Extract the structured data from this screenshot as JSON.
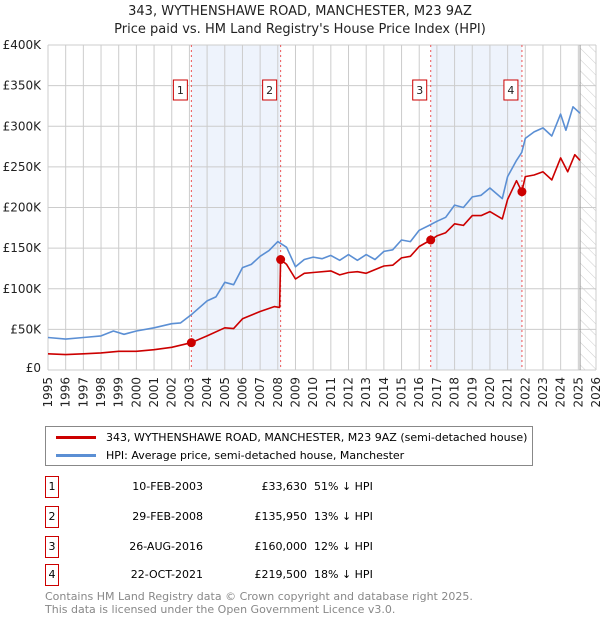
{
  "chart_data": {
    "type": "line",
    "title": "343, WYTHENSHAWE ROAD, MANCHESTER, M23 9AZ",
    "subtitle": "Price paid vs. HM Land Registry's House Price Index (HPI)",
    "xlim": [
      1995,
      2026
    ],
    "ylim": [
      0,
      400000
    ],
    "yticks": [
      {
        "v": 0,
        "label": "£0"
      },
      {
        "v": 50000,
        "label": "£50K"
      },
      {
        "v": 100000,
        "label": "£100K"
      },
      {
        "v": 150000,
        "label": "£150K"
      },
      {
        "v": 200000,
        "label": "£200K"
      },
      {
        "v": 250000,
        "label": "£250K"
      },
      {
        "v": 300000,
        "label": "£300K"
      },
      {
        "v": 350000,
        "label": "£350K"
      },
      {
        "v": 400000,
        "label": "£400K"
      }
    ],
    "xticks": [
      "1995",
      "1996",
      "1997",
      "1998",
      "1999",
      "2000",
      "2001",
      "2002",
      "2003",
      "2004",
      "2005",
      "2006",
      "2007",
      "2008",
      "2009",
      "2010",
      "2011",
      "2012",
      "2013",
      "2014",
      "2015",
      "2016",
      "2017",
      "2018",
      "2019",
      "2020",
      "2021",
      "2022",
      "2023",
      "2024",
      "2025",
      "2026"
    ],
    "forecast_from": 2025.1,
    "series": [
      {
        "name": "343, WYTHENSHAWE ROAD, MANCHESTER, M23 9AZ (semi-detached house)",
        "color": "#cc0000",
        "points": [
          [
            1995,
            20000
          ],
          [
            1996,
            19000
          ],
          [
            1997,
            20000
          ],
          [
            1998,
            21000
          ],
          [
            1999,
            23000
          ],
          [
            2000,
            23000
          ],
          [
            2001,
            25000
          ],
          [
            2002,
            28000
          ],
          [
            2003.1,
            33630
          ],
          [
            2004,
            42000
          ],
          [
            2005,
            52000
          ],
          [
            2005.5,
            51000
          ],
          [
            2006,
            63000
          ],
          [
            2007,
            72000
          ],
          [
            2007.8,
            78000
          ],
          [
            2008.1,
            77000
          ],
          [
            2008.16,
            135950
          ],
          [
            2008.5,
            130000
          ],
          [
            2009,
            112000
          ],
          [
            2009.5,
            119000
          ],
          [
            2010,
            120000
          ],
          [
            2011,
            122000
          ],
          [
            2011.5,
            117000
          ],
          [
            2012,
            120000
          ],
          [
            2012.5,
            121000
          ],
          [
            2013,
            119000
          ],
          [
            2014,
            128000
          ],
          [
            2014.5,
            129000
          ],
          [
            2015,
            138000
          ],
          [
            2015.5,
            140000
          ],
          [
            2016,
            152000
          ],
          [
            2016.65,
            160000
          ],
          [
            2017,
            165000
          ],
          [
            2017.5,
            169000
          ],
          [
            2018,
            180000
          ],
          [
            2018.5,
            178000
          ],
          [
            2019,
            190000
          ],
          [
            2019.5,
            190000
          ],
          [
            2020,
            195000
          ],
          [
            2020.7,
            186000
          ],
          [
            2021,
            210000
          ],
          [
            2021.5,
            233000
          ],
          [
            2021.8,
            219500
          ],
          [
            2022,
            238000
          ],
          [
            2022.5,
            240000
          ],
          [
            2023,
            244000
          ],
          [
            2023.5,
            234000
          ],
          [
            2024,
            261000
          ],
          [
            2024.4,
            244000
          ],
          [
            2024.8,
            265000
          ],
          [
            2025.1,
            258000
          ]
        ]
      },
      {
        "name": "HPI: Average price, semi-detached house, Manchester",
        "color": "#5b8fd4",
        "points": [
          [
            1995,
            40000
          ],
          [
            1996,
            38000
          ],
          [
            1997,
            40000
          ],
          [
            1998,
            42000
          ],
          [
            1998.7,
            48000
          ],
          [
            1999.3,
            44000
          ],
          [
            2000,
            48000
          ],
          [
            2001,
            52000
          ],
          [
            2002,
            57000
          ],
          [
            2002.5,
            58000
          ],
          [
            2003.1,
            68000
          ],
          [
            2004,
            85000
          ],
          [
            2004.5,
            90000
          ],
          [
            2005,
            108000
          ],
          [
            2005.5,
            105000
          ],
          [
            2006,
            126000
          ],
          [
            2006.5,
            130000
          ],
          [
            2007,
            140000
          ],
          [
            2007.5,
            147000
          ],
          [
            2008,
            158000
          ],
          [
            2008.5,
            151000
          ],
          [
            2009,
            127000
          ],
          [
            2009.5,
            136000
          ],
          [
            2010,
            139000
          ],
          [
            2010.5,
            137000
          ],
          [
            2011,
            141000
          ],
          [
            2011.5,
            135000
          ],
          [
            2012,
            142000
          ],
          [
            2012.5,
            135000
          ],
          [
            2013,
            142000
          ],
          [
            2013.5,
            136000
          ],
          [
            2014,
            146000
          ],
          [
            2014.5,
            148000
          ],
          [
            2015,
            160000
          ],
          [
            2015.5,
            158000
          ],
          [
            2016,
            172000
          ],
          [
            2016.65,
            179000
          ],
          [
            2017,
            183000
          ],
          [
            2017.5,
            188000
          ],
          [
            2018,
            203000
          ],
          [
            2018.5,
            200000
          ],
          [
            2019,
            213000
          ],
          [
            2019.5,
            215000
          ],
          [
            2020,
            224000
          ],
          [
            2020.7,
            211000
          ],
          [
            2021,
            238000
          ],
          [
            2021.5,
            258000
          ],
          [
            2021.8,
            268000
          ],
          [
            2022,
            285000
          ],
          [
            2022.5,
            293000
          ],
          [
            2023,
            298000
          ],
          [
            2023.5,
            288000
          ],
          [
            2024,
            315000
          ],
          [
            2024.3,
            295000
          ],
          [
            2024.7,
            324000
          ],
          [
            2025.1,
            316000
          ]
        ]
      }
    ],
    "sales": [
      {
        "n": "1",
        "x": 2003.11,
        "price": 33630
      },
      {
        "n": "2",
        "x": 2008.16,
        "price": 135950
      },
      {
        "n": "3",
        "x": 2016.65,
        "price": 160000
      },
      {
        "n": "4",
        "x": 2021.81,
        "price": 219500
      }
    ],
    "shaded": [
      [
        2003.11,
        2008.16
      ],
      [
        2016.65,
        2021.81
      ]
    ]
  },
  "legend": {
    "red": "343, WYTHENSHAWE ROAD, MANCHESTER, M23 9AZ (semi-detached house)",
    "blue": "HPI: Average price, semi-detached house, Manchester"
  },
  "table": [
    {
      "n": "1",
      "date": "10-FEB-2003",
      "price": "£33,630",
      "hpi": "51% ↓ HPI"
    },
    {
      "n": "2",
      "date": "29-FEB-2008",
      "price": "£135,950",
      "hpi": "13% ↓ HPI"
    },
    {
      "n": "3",
      "date": "26-AUG-2016",
      "price": "£160,000",
      "hpi": "12% ↓ HPI"
    },
    {
      "n": "4",
      "date": "22-OCT-2021",
      "price": "£219,500",
      "hpi": "18% ↓ HPI"
    }
  ],
  "footer": {
    "line1": "Contains HM Land Registry data © Crown copyright and database right 2025.",
    "line2": "This data is licensed under the Open Government Licence v3.0."
  }
}
